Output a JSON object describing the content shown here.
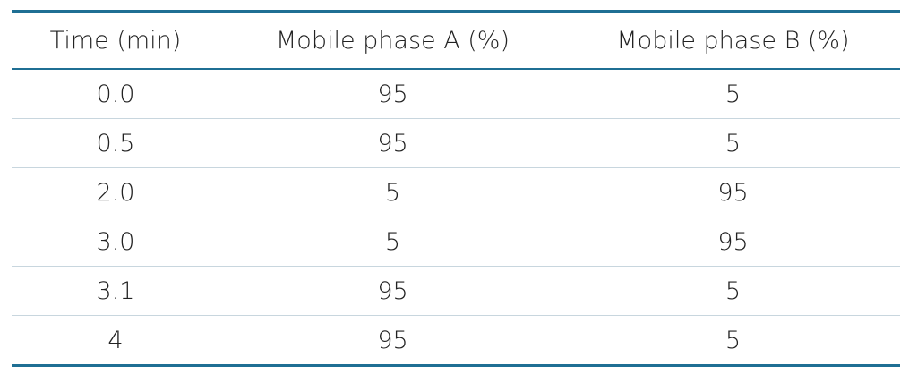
{
  "table": {
    "columns": [
      "Time (min)",
      "Mobile phase A (%)",
      "Mobile phase B (%)"
    ],
    "rows": [
      [
        "0.0",
        "95",
        "5"
      ],
      [
        "0.5",
        "95",
        "5"
      ],
      [
        "2.0",
        "5",
        "95"
      ],
      [
        "3.0",
        "5",
        "95"
      ],
      [
        "3.1",
        "95",
        "5"
      ],
      [
        "4",
        "95",
        "5"
      ]
    ]
  }
}
